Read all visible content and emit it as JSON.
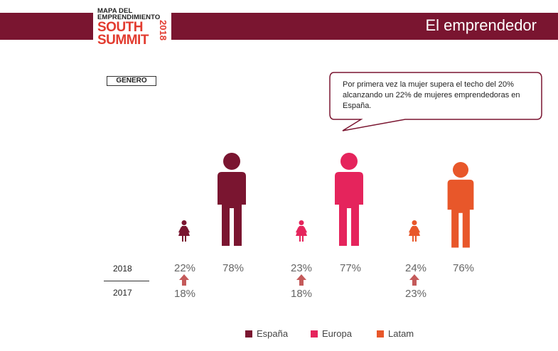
{
  "header": {
    "logo_line1": "MAPA DEL",
    "logo_line2": "EMPRENDIMIENTO",
    "logo_line3": "SOUTH",
    "logo_line4": "SUMMIT",
    "logo_year": "2018",
    "title": "El emprendedor"
  },
  "badge": "GENERO",
  "callout": "Por primera vez la mujer supera el techo del 20% alcanzando un 22% de mujeres emprendedoras en España.",
  "colors": {
    "header_bar": "#7a1530",
    "espana": "#7a1530",
    "europa": "#e5245c",
    "latam": "#e8572a",
    "arrow": "#c45a5a"
  },
  "chart_data": {
    "type": "pictogram",
    "rows": [
      "2018",
      "2017"
    ],
    "groups": [
      {
        "name": "España",
        "women_2018": 22,
        "men_2018": 78,
        "women_2017": 18
      },
      {
        "name": "Europa",
        "women_2018": 23,
        "men_2018": 77,
        "women_2017": 18
      },
      {
        "name": "Latam",
        "women_2018": 24,
        "men_2018": 76,
        "women_2017": 23
      }
    ],
    "labels": {
      "espana_w18": "22%",
      "espana_m18": "78%",
      "espana_w17": "18%",
      "europa_w18": "23%",
      "europa_m18": "77%",
      "europa_w17": "18%",
      "latam_w18": "24%",
      "latam_m18": "76%",
      "latam_w17": "23%"
    },
    "legend": [
      "España",
      "Europa",
      "Latam"
    ]
  }
}
